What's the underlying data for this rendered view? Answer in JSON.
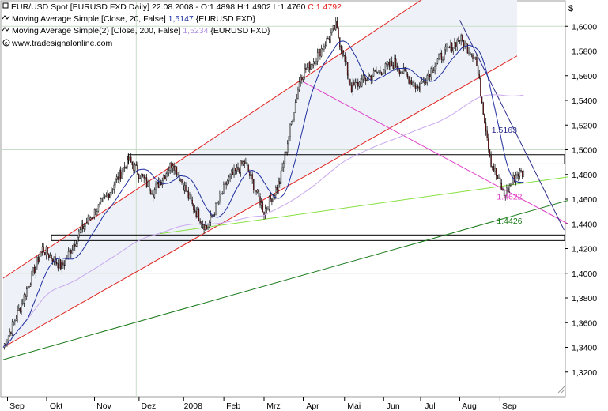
{
  "header": {
    "line1": {
      "prefix": "EUR/USD Spot [EURUSD FXD  Daily] 22.08.2008 - O:1.4898 H:1.4902 L:1.4760 ",
      "close": "C:1.4792"
    },
    "line2": {
      "prefix": "Moving Average Simple [Close, 20, False] ",
      "value": "1,5147",
      "suffix": " {EURUSD FXD}"
    },
    "line3": {
      "prefix": "Moving Average Simple(2) [Close, 200, False] ",
      "value": "1,5234",
      "suffix": " {EURUSD FXD}"
    },
    "source": "www.tradesignalonline.com"
  },
  "colors": {
    "candle_up": "#ffffff",
    "candle_down": "#8b1a1a",
    "ma20": "#1f2f9f",
    "ma200": "#c8a8ee",
    "channel": "#e0201c",
    "trend_magenta": "#e040c8",
    "trend_lightgreen": "#88e040",
    "trend_darkgreen": "#1a7a1a",
    "trend_navy": "#2a2a8a",
    "close_text": "#e0201c"
  },
  "chart_data": {
    "type": "candlestick",
    "instrument": "EUR/USD Spot",
    "ylim": [
      1.3,
      1.62
    ],
    "yticks": [
      "1,6000",
      "1,5800",
      "1,5600",
      "1,5400",
      "1,5200",
      "1,5000",
      "1,4800",
      "1,4600",
      "1,4400",
      "1,4200",
      "1,4000",
      "1,3800",
      "1,3600",
      "1,3400",
      "1,3200"
    ],
    "xticks": [
      "Sep",
      "Okt",
      "Nov",
      "Dez",
      "2008",
      "Feb",
      "Mrz",
      "Apr",
      "Mai",
      "Jun",
      "Jul",
      "Aug",
      "Sep"
    ],
    "series": [
      {
        "name": "Moving Average Simple [Close, 20, False]",
        "last": 1.5147
      },
      {
        "name": "Moving Average Simple(2) [Close, 200, False]",
        "last": 1.5234
      }
    ],
    "annotations": [
      {
        "label": "1.5163",
        "value": 1.5163
      },
      {
        "label": "1.4622",
        "value": 1.4622
      },
      {
        "label": "1.4426",
        "value": 1.4426
      }
    ],
    "resistance_zones": [
      {
        "top": 1.496,
        "bottom": 1.4885
      },
      {
        "top": 1.431,
        "bottom": 1.4265
      }
    ],
    "pivots": [
      {
        "x": 0,
        "y": 1.34
      },
      {
        "x": 12,
        "y": 1.37
      },
      {
        "x": 30,
        "y": 1.42
      },
      {
        "x": 45,
        "y": 1.405
      },
      {
        "x": 60,
        "y": 1.436
      },
      {
        "x": 78,
        "y": 1.46
      },
      {
        "x": 96,
        "y": 1.492
      },
      {
        "x": 115,
        "y": 1.466
      },
      {
        "x": 130,
        "y": 1.49
      },
      {
        "x": 145,
        "y": 1.455
      },
      {
        "x": 156,
        "y": 1.436
      },
      {
        "x": 172,
        "y": 1.475
      },
      {
        "x": 185,
        "y": 1.49
      },
      {
        "x": 200,
        "y": 1.45
      },
      {
        "x": 212,
        "y": 1.474
      },
      {
        "x": 228,
        "y": 1.56
      },
      {
        "x": 240,
        "y": 1.575
      },
      {
        "x": 255,
        "y": 1.6
      },
      {
        "x": 267,
        "y": 1.55
      },
      {
        "x": 282,
        "y": 1.56
      },
      {
        "x": 300,
        "y": 1.57
      },
      {
        "x": 318,
        "y": 1.55
      },
      {
        "x": 335,
        "y": 1.575
      },
      {
        "x": 350,
        "y": 1.59
      },
      {
        "x": 362,
        "y": 1.575
      },
      {
        "x": 374,
        "y": 1.49
      },
      {
        "x": 384,
        "y": 1.463
      },
      {
        "x": 394,
        "y": 1.481
      }
    ]
  }
}
